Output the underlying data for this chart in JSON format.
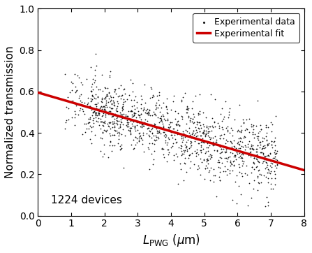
{
  "ylabel": "Normalized transmission",
  "xlim": [
    0,
    8
  ],
  "ylim": [
    0.0,
    1.0
  ],
  "xticks": [
    0,
    1,
    2,
    3,
    4,
    5,
    6,
    7,
    8
  ],
  "yticks": [
    0.0,
    0.2,
    0.4,
    0.6,
    0.8,
    1.0
  ],
  "annotation": "1224 devices",
  "legend_scatter": "Experimental data",
  "legend_line": "Experimental fit",
  "fit_x": [
    0,
    8
  ],
  "fit_y": [
    0.595,
    0.22
  ],
  "fit_color": "#cc0000",
  "scatter_color": "#111111",
  "scatter_size": 6,
  "n_points": 1224,
  "seed": 42,
  "background_color": "#ffffff"
}
